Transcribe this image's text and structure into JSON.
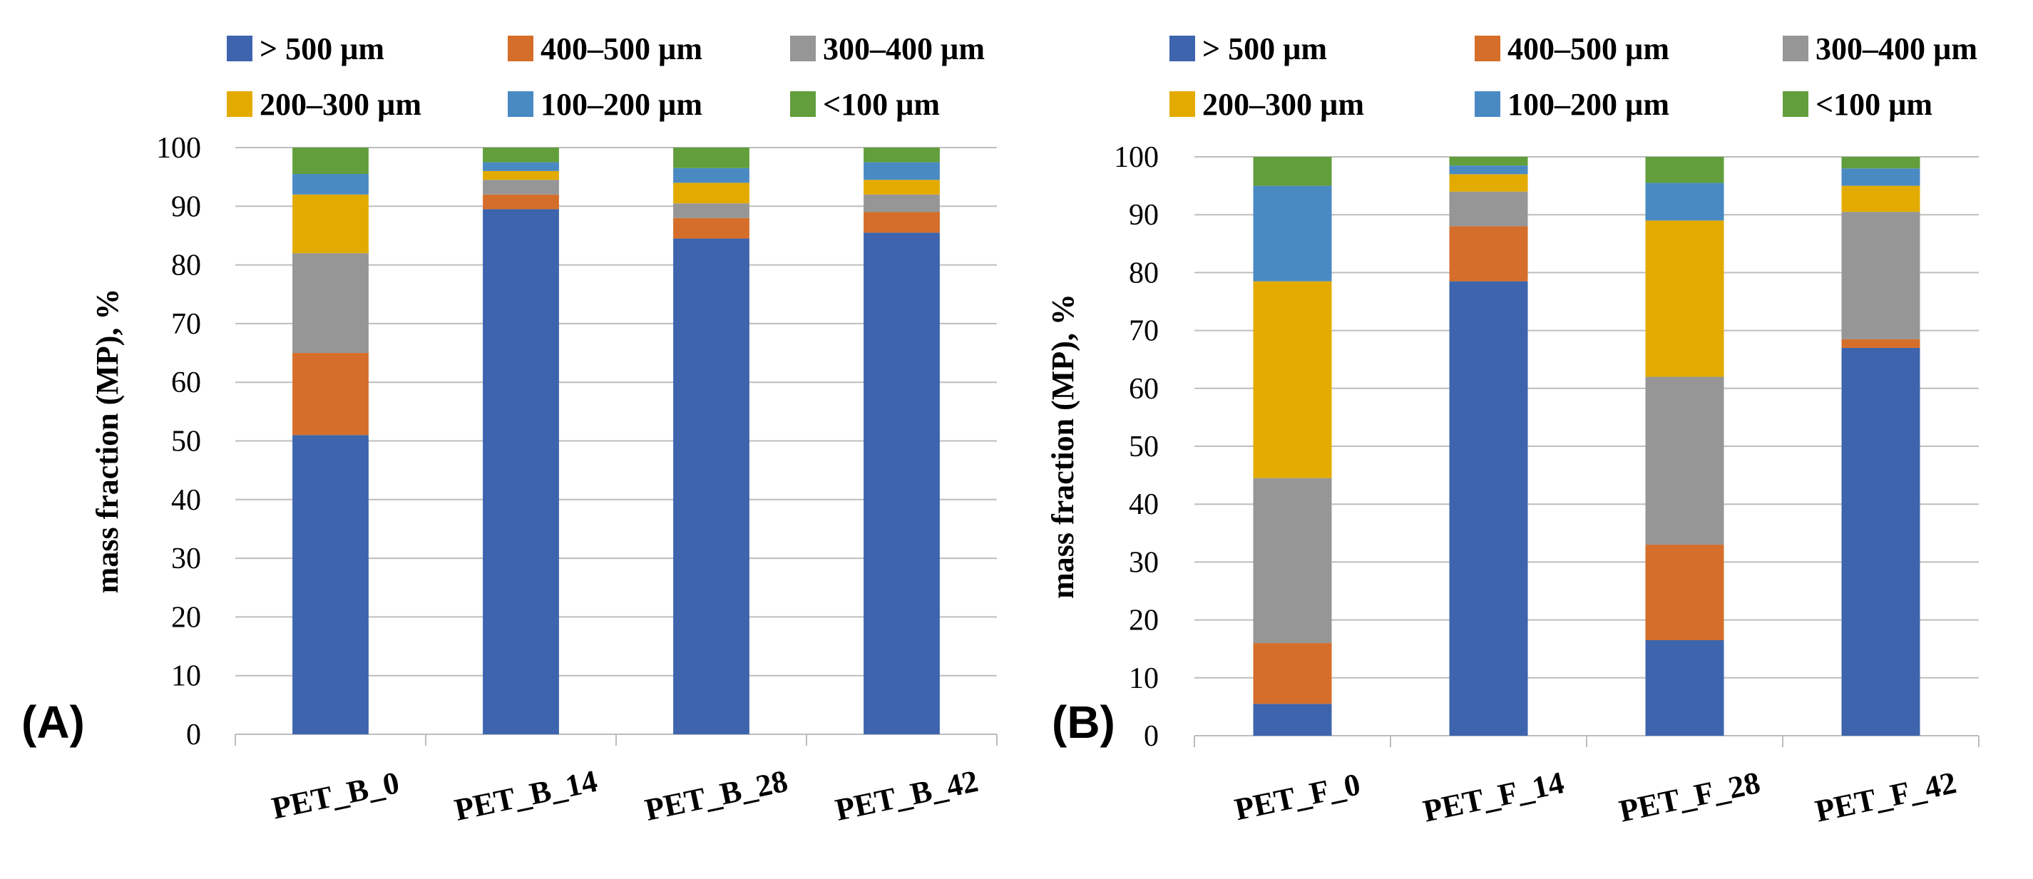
{
  "colors": {
    "gt500": "#3d64ad",
    "400_500": "#d56e2a",
    "300_400": "#969696",
    "200_300": "#e3ab00",
    "100_200": "#4a8ac3",
    "lt100": "#629e3c",
    "grid": "#bdbdbd",
    "axis": "#bdbdbd"
  },
  "chart_data": [
    {
      "type": "bar",
      "stacked": true,
      "panel_label": "(A)",
      "title": "",
      "xlabel": "",
      "ylabel": "mass fraction (MP), %",
      "ylim": [
        0,
        100
      ],
      "yticks": [
        0,
        10,
        20,
        30,
        40,
        50,
        60,
        70,
        80,
        90,
        100
      ],
      "legend_position": "top",
      "categories": [
        "PET_B_0",
        "PET_B_14",
        "PET_B_28",
        "PET_B_42"
      ],
      "series": [
        {
          "key": "gt500",
          "name": "> 500 µm",
          "values": [
            51.0,
            89.5,
            84.5,
            85.5
          ]
        },
        {
          "key": "400_500",
          "name": "400–500  µm",
          "values": [
            14.0,
            2.5,
            3.5,
            3.5
          ]
        },
        {
          "key": "300_400",
          "name": "300–400 µm",
          "values": [
            17.0,
            2.5,
            2.5,
            3.0
          ]
        },
        {
          "key": "200_300",
          "name": "200–300 µm",
          "values": [
            10.0,
            1.5,
            3.5,
            2.5
          ]
        },
        {
          "key": "100_200",
          "name": "100–200 µm",
          "values": [
            3.5,
            1.5,
            2.5,
            3.0
          ]
        },
        {
          "key": "lt100",
          "name": "<100 µm",
          "values": [
            4.5,
            2.5,
            3.5,
            2.5
          ]
        }
      ]
    },
    {
      "type": "bar",
      "stacked": true,
      "panel_label": "(B)",
      "title": "",
      "xlabel": "",
      "ylabel": "mass fraction (MP), %",
      "ylim": [
        0,
        100
      ],
      "yticks": [
        0,
        10,
        20,
        30,
        40,
        50,
        60,
        70,
        80,
        90,
        100
      ],
      "legend_position": "top",
      "categories": [
        "PET_F_0",
        "PET_F_14",
        "PET_F_28",
        "PET_F_42"
      ],
      "series": [
        {
          "key": "gt500",
          "name": "> 500 µm",
          "values": [
            5.5,
            78.5,
            16.5,
            67.0
          ]
        },
        {
          "key": "400_500",
          "name": "400–500  µm",
          "values": [
            10.5,
            9.5,
            16.5,
            1.5
          ]
        },
        {
          "key": "300_400",
          "name": "300–400 µm",
          "values": [
            28.5,
            6.0,
            29.0,
            22.0
          ]
        },
        {
          "key": "200_300",
          "name": "200–300 µm",
          "values": [
            34.0,
            3.0,
            27.0,
            4.5
          ]
        },
        {
          "key": "100_200",
          "name": "100–200 µm",
          "values": [
            16.5,
            1.5,
            6.5,
            3.0
          ]
        },
        {
          "key": "lt100",
          "name": "<100 µm",
          "values": [
            5.0,
            1.5,
            4.5,
            2.0
          ]
        }
      ]
    }
  ]
}
